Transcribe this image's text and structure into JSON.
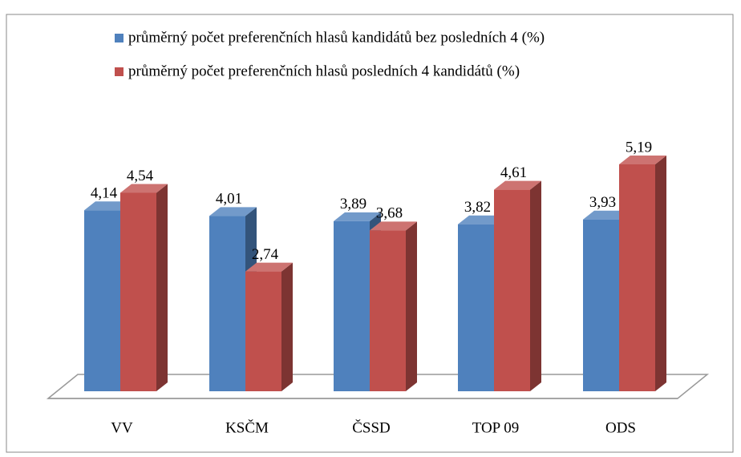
{
  "chart_data": {
    "type": "bar3d",
    "categories": [
      "VV",
      "KSČM",
      "ČSSD",
      "TOP 09",
      "ODS"
    ],
    "series": [
      {
        "name": "průměrný počet preferenčních hlasů kandidátů bez posledních 4 (%)",
        "color": "#4f81bd",
        "values": [
          4.14,
          4.01,
          3.89,
          3.82,
          3.93
        ],
        "value_labels": [
          "4,14",
          "4,01",
          "3,89",
          "3,82",
          "3,93"
        ]
      },
      {
        "name": "průměrný počet preferenčních hlasů posledních 4 kandidátů (%)",
        "color": "#c0504d",
        "values": [
          4.54,
          2.74,
          3.68,
          4.61,
          5.19
        ],
        "value_labels": [
          "4,54",
          "2,74",
          "3,68",
          "4,61",
          "5,19"
        ]
      }
    ]
  }
}
